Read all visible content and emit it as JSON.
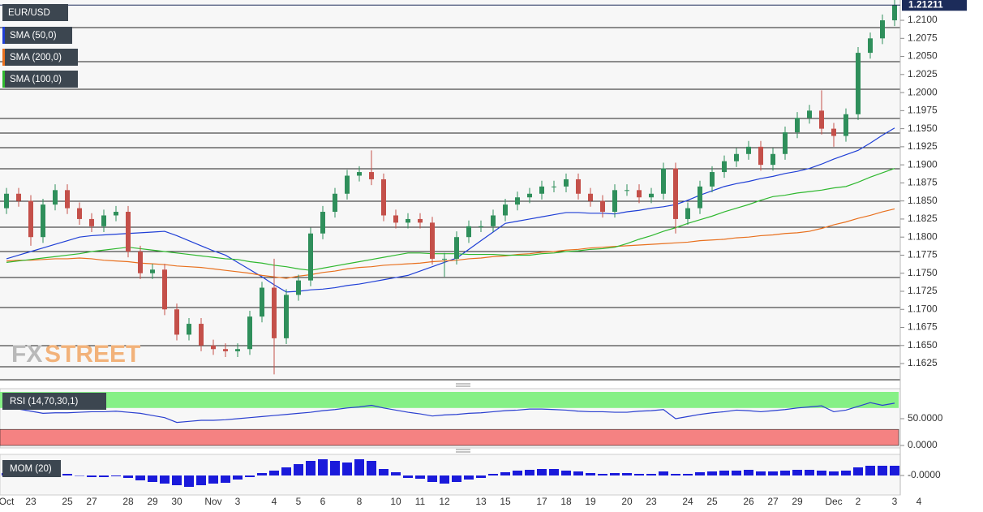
{
  "chart_data": [
    {
      "type": "candlestick",
      "symbol": "EUR/USD",
      "categories": [
        "Oct",
        null,
        "23",
        null,
        null,
        "25",
        null,
        "27",
        null,
        null,
        "28",
        null,
        "29",
        null,
        "30",
        null,
        null,
        "Nov",
        null,
        "3",
        null,
        null,
        "4",
        null,
        "5",
        null,
        "6",
        null,
        null,
        "8",
        null,
        null,
        "10",
        null,
        "11",
        null,
        "12",
        null,
        null,
        "13",
        null,
        "15",
        null,
        null,
        "17",
        null,
        "18",
        null,
        "19",
        null,
        null,
        "20",
        null,
        "23",
        null,
        null,
        "24",
        null,
        "25",
        null,
        null,
        "26",
        null,
        "27",
        null,
        "29",
        null,
        null,
        "Dec",
        null,
        "2",
        null,
        null,
        "3",
        null,
        "4"
      ],
      "open": [
        1.184,
        1.186,
        1.185,
        1.18,
        1.1845,
        1.1865,
        1.184,
        1.1825,
        1.1815,
        1.183,
        1.1835,
        1.178,
        1.175,
        1.1755,
        1.17,
        1.1665,
        1.168,
        1.165,
        1.1645,
        1.1642,
        1.1645,
        1.169,
        1.173,
        1.166,
        1.172,
        1.174,
        1.1805,
        1.1835,
        1.186,
        1.1885,
        1.189,
        1.188,
        1.183,
        1.182,
        1.1825,
        1.182,
        1.177,
        1.177,
        1.18,
        1.1815,
        1.1815,
        1.183,
        1.1845,
        1.1855,
        1.186,
        1.187,
        1.187,
        1.188,
        1.186,
        1.185,
        1.1835,
        1.1865,
        1.1865,
        1.1855,
        1.186,
        1.1895,
        1.1825,
        1.184,
        1.187,
        1.189,
        1.1905,
        1.1915,
        1.1925,
        1.19,
        1.1915,
        1.1945,
        1.1965,
        1.1975,
        1.195,
        1.194,
        1.197,
        1.2055,
        1.2075,
        1.21,
        null,
        null
      ],
      "high": [
        1.1868,
        1.1868,
        1.1858,
        1.1853,
        1.1873,
        1.1873,
        1.1848,
        1.1833,
        1.1838,
        1.1843,
        1.1843,
        1.1788,
        1.1763,
        1.1763,
        1.1708,
        1.1688,
        1.1688,
        1.1658,
        1.1653,
        1.1653,
        1.1698,
        1.1738,
        1.177,
        1.1728,
        1.1748,
        1.1813,
        1.1843,
        1.1868,
        1.1893,
        1.1898,
        1.192,
        1.1888,
        1.1838,
        1.1833,
        1.1833,
        1.1828,
        1.1778,
        1.1808,
        1.1823,
        1.1823,
        1.1838,
        1.1853,
        1.1863,
        1.1868,
        1.1878,
        1.1878,
        1.1888,
        1.1888,
        1.1868,
        1.1858,
        1.1873,
        1.1873,
        1.1873,
        1.1868,
        1.1903,
        1.1903,
        1.1848,
        1.1878,
        1.1898,
        1.1913,
        1.1923,
        1.1933,
        1.1933,
        1.1923,
        1.1953,
        1.1973,
        1.1983,
        1.2003,
        1.1958,
        1.1978,
        1.2063,
        1.2083,
        1.2108,
        1.2129,
        null,
        null
      ],
      "low": [
        1.1832,
        1.1842,
        1.1788,
        1.1792,
        1.1837,
        1.1832,
        1.1817,
        1.1807,
        1.1807,
        1.1822,
        1.1772,
        1.1742,
        1.1742,
        1.1692,
        1.1657,
        1.1657,
        1.1642,
        1.1637,
        1.1634,
        1.1634,
        1.1637,
        1.1682,
        1.161,
        1.1652,
        1.1712,
        1.1732,
        1.1797,
        1.1827,
        1.1852,
        1.1877,
        1.1872,
        1.1822,
        1.1812,
        1.1812,
        1.1812,
        1.1762,
        1.1745,
        1.1762,
        1.1792,
        1.1807,
        1.1807,
        1.1822,
        1.1837,
        1.1847,
        1.1852,
        1.1862,
        1.1862,
        1.1852,
        1.1842,
        1.1827,
        1.1827,
        1.1857,
        1.1847,
        1.1847,
        1.1852,
        1.1805,
        1.1817,
        1.1832,
        1.1862,
        1.1882,
        1.1897,
        1.1907,
        1.1892,
        1.1892,
        1.1907,
        1.1937,
        1.1957,
        1.1942,
        1.1925,
        1.1932,
        1.1962,
        1.2047,
        1.2067,
        1.2092,
        null,
        null
      ],
      "close": [
        1.186,
        1.185,
        1.18,
        1.1845,
        1.1865,
        1.184,
        1.1825,
        1.1815,
        1.183,
        1.1835,
        1.178,
        1.175,
        1.1755,
        1.17,
        1.1665,
        1.168,
        1.165,
        1.1645,
        1.1642,
        1.1645,
        1.169,
        1.173,
        1.166,
        1.172,
        1.174,
        1.1805,
        1.1835,
        1.186,
        1.1885,
        1.189,
        1.188,
        1.183,
        1.182,
        1.1825,
        1.182,
        1.177,
        1.177,
        1.18,
        1.1815,
        1.1815,
        1.183,
        1.1845,
        1.1855,
        1.186,
        1.187,
        1.187,
        1.188,
        1.186,
        1.185,
        1.1835,
        1.1865,
        1.1865,
        1.1855,
        1.186,
        1.1895,
        1.1825,
        1.184,
        1.187,
        1.189,
        1.1905,
        1.1915,
        1.1925,
        1.19,
        1.1915,
        1.1945,
        1.1965,
        1.1975,
        1.195,
        1.194,
        1.197,
        1.2055,
        1.2075,
        1.21,
        1.2121,
        null,
        null
      ],
      "up_color": "#2f8f5b",
      "down_color": "#c4504a",
      "overlays": [
        {
          "name": "SMA (50,0)",
          "color": "#1f3fd6",
          "values": [
            1.177,
            1.1775,
            1.178,
            1.1785,
            1.179,
            1.1795,
            1.18,
            1.1802,
            1.1803,
            1.1804,
            1.1805,
            1.1806,
            1.1807,
            1.1808,
            1.1802,
            1.1795,
            1.1788,
            1.1781,
            1.1775,
            1.1765,
            1.1755,
            1.1745,
            1.1734,
            1.1724,
            1.1725,
            1.1727,
            1.1728,
            1.173,
            1.1733,
            1.1735,
            1.1738,
            1.1741,
            1.1744,
            1.1747,
            1.1753,
            1.1759,
            1.1765,
            1.1771,
            1.1783,
            1.1795,
            1.1807,
            1.1819,
            1.1822,
            1.1825,
            1.1828,
            1.1831,
            1.1834,
            1.1834,
            1.1833,
            1.1833,
            1.1832,
            1.1835,
            1.1837,
            1.184,
            1.1842,
            1.1845,
            1.1851,
            1.1858,
            1.1864,
            1.187,
            1.1874,
            1.1877,
            1.1881,
            1.1884,
            1.1888,
            1.1891,
            1.1895,
            1.1901,
            1.1908,
            1.1914,
            1.192,
            1.193,
            1.1941,
            1.1951,
            null,
            null
          ]
        },
        {
          "name": "SMA (200,0)",
          "color": "#e8701e",
          "values": [
            1.1767,
            1.1768,
            1.1768,
            1.1769,
            1.177,
            1.177,
            1.1771,
            1.177,
            1.1768,
            1.1767,
            1.1766,
            1.1764,
            1.1763,
            1.1762,
            1.176,
            1.1759,
            1.1758,
            1.1756,
            1.1754,
            1.1752,
            1.175,
            1.1747,
            1.1745,
            1.1743,
            1.1746,
            1.1748,
            1.1751,
            1.1753,
            1.1756,
            1.1758,
            1.1759,
            1.1761,
            1.1762,
            1.1763,
            1.1764,
            1.1766,
            1.1767,
            1.1768,
            1.177,
            1.1771,
            1.1773,
            1.1774,
            1.1776,
            1.1777,
            1.1779,
            1.178,
            1.1782,
            1.1783,
            1.1785,
            1.1786,
            1.1787,
            1.1788,
            1.1789,
            1.179,
            1.1791,
            1.1792,
            1.1793,
            1.1795,
            1.1796,
            1.1797,
            1.1799,
            1.18,
            1.1802,
            1.1803,
            1.1805,
            1.1806,
            1.1808,
            1.1812,
            1.1817,
            1.1821,
            1.1826,
            1.183,
            1.1835,
            1.1839,
            null,
            null
          ]
        },
        {
          "name": "SMA (100,0)",
          "color": "#2fb82f",
          "values": [
            1.1765,
            1.1767,
            1.1769,
            1.1771,
            1.1773,
            1.1775,
            1.1777,
            1.178,
            1.1782,
            1.1784,
            1.1786,
            1.1784,
            1.1782,
            1.178,
            1.1778,
            1.1776,
            1.1774,
            1.1772,
            1.177,
            1.1769,
            1.1766,
            1.1764,
            1.1761,
            1.1759,
            1.1756,
            1.1754,
            1.1757,
            1.176,
            1.1763,
            1.1766,
            1.1769,
            1.1772,
            1.1775,
            1.1778,
            1.1778,
            1.1777,
            1.1777,
            1.1777,
            1.1776,
            1.1776,
            1.1776,
            1.1775,
            1.1775,
            1.1775,
            1.1777,
            1.1778,
            1.178,
            1.1781,
            1.1783,
            1.1784,
            1.1786,
            1.1791,
            1.1797,
            1.1802,
            1.1808,
            1.1813,
            1.1819,
            1.1824,
            1.1829,
            1.1835,
            1.184,
            1.1845,
            1.1851,
            1.1856,
            1.1858,
            1.1861,
            1.1863,
            1.1865,
            1.1868,
            1.187,
            1.1876,
            1.1883,
            1.1889,
            1.1895,
            null,
            null
          ]
        }
      ],
      "ylim": [
        1.16026,
        1.21281
      ],
      "yticks": [
        {
          "value": 1.21,
          "label": "1.2100"
        },
        {
          "value": 1.2075,
          "label": "1.2075"
        },
        {
          "value": 1.205,
          "label": "1.2050"
        },
        {
          "value": 1.2025,
          "label": "1.2025"
        },
        {
          "value": 1.2,
          "label": "1.2000"
        },
        {
          "value": 1.1975,
          "label": "1.1975"
        },
        {
          "value": 1.195,
          "label": "1.1950"
        },
        {
          "value": 1.1925,
          "label": "1.1925"
        },
        {
          "value": 1.19,
          "label": "1.1900"
        },
        {
          "value": 1.1875,
          "label": "1.1875"
        },
        {
          "value": 1.185,
          "label": "1.1850"
        },
        {
          "value": 1.1825,
          "label": "1.1825"
        },
        {
          "value": 1.18,
          "label": "1.1800"
        },
        {
          "value": 1.1775,
          "label": "1.1775"
        },
        {
          "value": 1.175,
          "label": "1.1750"
        },
        {
          "value": 1.1725,
          "label": "1.1725"
        },
        {
          "value": 1.17,
          "label": "1.1700"
        },
        {
          "value": 1.1675,
          "label": "1.1675"
        },
        {
          "value": 1.165,
          "label": "1.1650"
        },
        {
          "value": 1.1625,
          "label": "1.1625"
        }
      ],
      "last_price": 1.21211,
      "watermark": [
        "FX",
        "STREET"
      ]
    },
    {
      "type": "line",
      "name": "RSI (14,70,30,1)",
      "color": "#2a3fd0",
      "values": [
        72,
        68,
        64,
        60,
        61,
        61,
        62,
        63,
        63,
        64,
        62,
        60,
        56,
        52,
        43,
        45,
        47,
        47,
        48,
        50,
        52,
        54,
        56,
        58,
        60,
        62,
        65,
        67,
        70,
        72,
        75,
        70,
        66,
        62,
        59,
        55,
        57,
        58,
        60,
        61,
        63,
        65,
        66,
        68,
        68,
        67,
        66,
        64,
        63,
        63,
        62,
        62,
        64,
        65,
        67,
        50,
        54,
        58,
        61,
        63,
        66,
        65,
        63,
        65,
        67,
        70,
        72,
        74,
        63,
        66,
        73,
        80,
        75,
        79,
        null,
        null
      ],
      "upper": 70,
      "lower": 30,
      "upper_color": "#86f086",
      "lower_color": "#f58282",
      "ylim": [
        0,
        100
      ],
      "yticks": [
        {
          "value": 50,
          "label": "50.0000"
        },
        {
          "value": 0,
          "label": "0.0000"
        }
      ]
    },
    {
      "type": "bar",
      "name": "MOM (20)",
      "color": "#1a1adb",
      "values": [
        0.0015,
        0.002,
        0.001,
        0.0015,
        0.002,
        0.001,
        0,
        -0.001,
        -0.001,
        -0.0005,
        -0.0015,
        -0.003,
        -0.004,
        -0.005,
        -0.006,
        -0.007,
        -0.006,
        -0.005,
        -0.0045,
        -0.0025,
        -0.001,
        0.0015,
        0.003,
        0.005,
        0.007,
        0.009,
        0.01,
        0.009,
        0.008,
        0.01,
        0.009,
        0.004,
        0.002,
        -0.0015,
        -0.002,
        -0.004,
        -0.005,
        -0.004,
        -0.0025,
        -0.0015,
        0.001,
        0.002,
        0.003,
        0.0035,
        0.004,
        0.004,
        0.003,
        0.0025,
        0.0015,
        0.001,
        0.0015,
        0.0015,
        0.001,
        0.001,
        0.0025,
        0.001,
        0.001,
        0.002,
        0.0025,
        0.003,
        0.003,
        0.0035,
        0.0025,
        0.0025,
        0.003,
        0.0035,
        0.0035,
        0.003,
        0.0025,
        0.003,
        0.005,
        0.006,
        0.006,
        0.006,
        null,
        null
      ],
      "ylim": [
        -0.012,
        0.012
      ],
      "yticks": [
        {
          "value": 0,
          "label": "-0.0000"
        }
      ]
    }
  ]
}
